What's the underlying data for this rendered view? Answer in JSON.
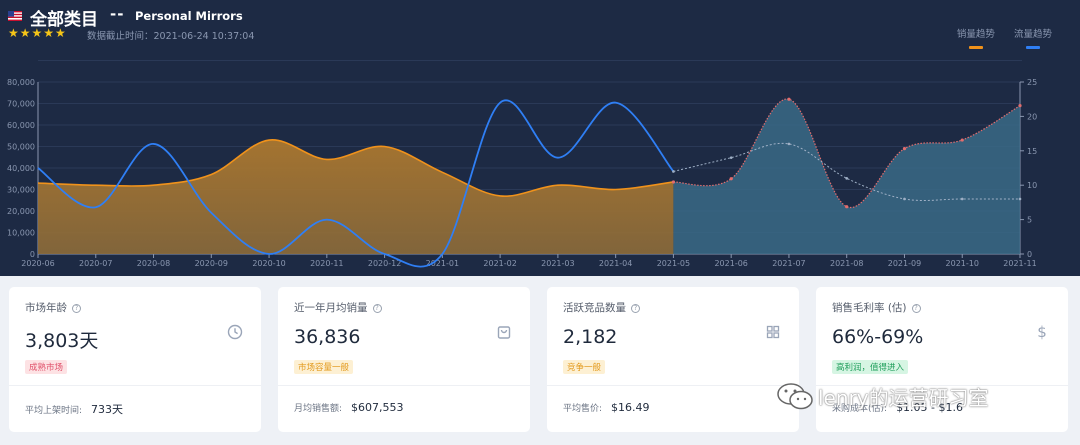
{
  "header": {
    "title": "全部类目",
    "separator": "--",
    "subtitle": "Personal Mirrors",
    "stars": "★★★★★",
    "timestamp": "数据截止时间：2021-06-24 10:37:04",
    "legend": [
      {
        "label": "销量趋势",
        "color": "#f0921b"
      },
      {
        "label": "流量趋势",
        "color": "#2f7ff5"
      }
    ]
  },
  "chart_data": {
    "type": "area",
    "categories": [
      "2020-06",
      "2020-07",
      "2020-08",
      "2020-09",
      "2020-10",
      "2020-11",
      "2020-12",
      "2021-01",
      "2021-02",
      "2021-03",
      "2021-04",
      "2021-05",
      "2021-06",
      "2021-07",
      "2021-08",
      "2021-09",
      "2021-10",
      "2021-11"
    ],
    "left_axis": {
      "ticks": [
        "0",
        "10,000",
        "20,000",
        "30,000",
        "40,000",
        "50,000",
        "60,000",
        "70,000",
        "80,000"
      ],
      "max": 80000
    },
    "right_axis": {
      "ticks": [
        "0",
        "5",
        "10",
        "15",
        "20",
        "25"
      ],
      "max": 25
    },
    "forecast_start_index": 11,
    "series": [
      {
        "name": "销量趋势",
        "axis": "left",
        "values": [
          33000,
          32000,
          32000,
          37000,
          53000,
          44000,
          50000,
          38000,
          27000,
          32000,
          30000,
          33500,
          35000,
          72000,
          22000,
          49000,
          53000,
          69000
        ]
      },
      {
        "name": "流量趋势",
        "axis": "right",
        "values": [
          12.5,
          6.8,
          16,
          6,
          0,
          5,
          0,
          0,
          22,
          14,
          22,
          12,
          14,
          16,
          11,
          8,
          8,
          8
        ]
      }
    ]
  },
  "cards": [
    {
      "label": "市场年龄",
      "value": "3,803天",
      "icon": "clock-icon",
      "badge": "成熟市场",
      "badge_bg": "#fde2e4",
      "badge_fg": "#e0526b",
      "foot_label": "平均上架时间:",
      "foot_value": "733天"
    },
    {
      "label": "近一年月均销量",
      "value": "36,836",
      "icon": "shopping-bag-icon",
      "badge": "市场容量一般",
      "badge_bg": "#fdf0d3",
      "badge_fg": "#e39a1e",
      "foot_label": "月均销售额:",
      "foot_value": "$607,553"
    },
    {
      "label": "活跃竞品数量",
      "value": "2,182",
      "icon": "grid-icon",
      "badge": "竞争一般",
      "badge_bg": "#fdf0d3",
      "badge_fg": "#e39a1e",
      "foot_label": "平均售价:",
      "foot_value": "$16.49"
    },
    {
      "label": "销售毛利率 (估)",
      "value": "66%-69%",
      "icon": "dollar-icon",
      "badge": "高利润，值得进入",
      "badge_bg": "#d6f5e3",
      "badge_fg": "#1f9e5b",
      "foot_label": "采购成本(估):",
      "foot_value": "$1.05 - $1.6"
    }
  ],
  "watermark": {
    "text": "lenry的运营研习室"
  }
}
